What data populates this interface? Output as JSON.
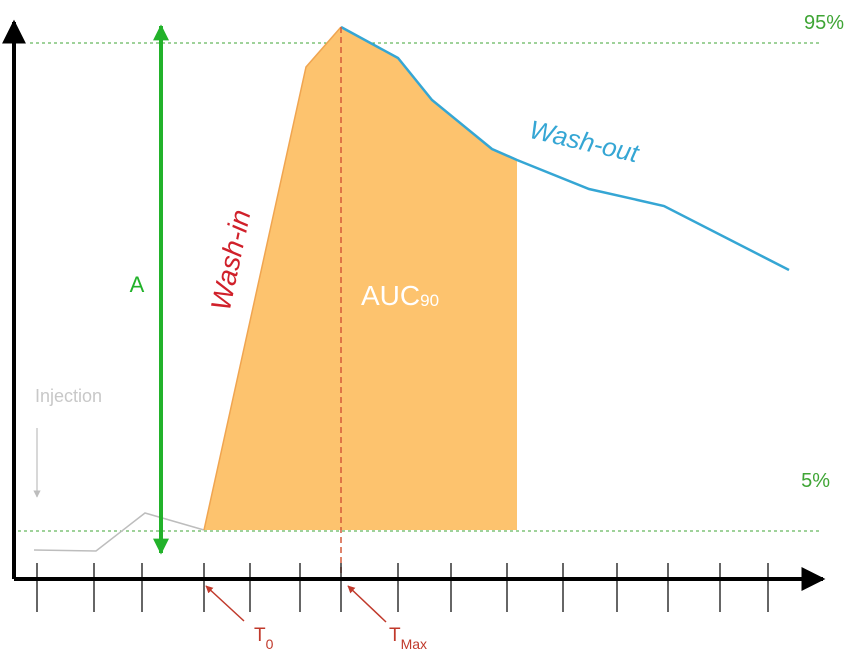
{
  "labels": {
    "pct_high": "95%",
    "pct_low": "5%",
    "amplitude": "A",
    "wash_in": "Wash-in",
    "wash_out": "Wash-out",
    "auc_main": "AUC",
    "auc_sub": "90",
    "injection": "Injection",
    "t0_main": "T",
    "t0_sub": "0",
    "tmax_main": "T",
    "tmax_sub": "Max"
  },
  "colors": {
    "axis": "#000000",
    "threshold": "#3fa535",
    "amplitude_arrow": "#22b22a",
    "wash_in": "#d0202a",
    "wash_out": "#35a6d4",
    "auc_fill": "#fdc36e",
    "baseline_curve": "#bdbdbd",
    "marker": "#c0392b"
  }
}
